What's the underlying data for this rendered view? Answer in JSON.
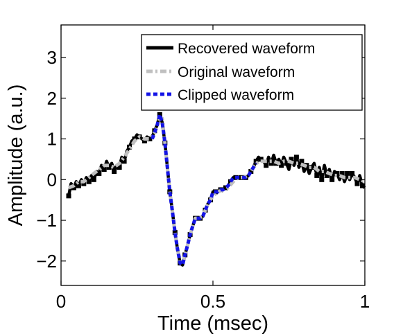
{
  "chart_data": {
    "type": "line",
    "title": "",
    "xlabel": "Time (msec)",
    "ylabel": "Amplitude (a.u.)",
    "xlim": [
      0,
      1
    ],
    "ylim": [
      -2.6,
      3.8
    ],
    "xticks": [
      0,
      0.5,
      1
    ],
    "xtick_labels": [
      "0",
      "0.5",
      "1"
    ],
    "yticks": [
      -2,
      -1,
      0,
      1,
      2,
      3
    ],
    "ytick_labels": [
      "−2",
      "−1",
      "0",
      "1",
      "2",
      "3"
    ],
    "grid": false,
    "legend_position": "top-right",
    "series": [
      {
        "name": "Recovered waveform",
        "color": "#000000",
        "x": [
          0.025,
          0.033,
          0.042,
          0.05,
          0.058,
          0.067,
          0.075,
          0.083,
          0.092,
          0.1,
          0.108,
          0.117,
          0.125,
          0.133,
          0.142,
          0.15,
          0.158,
          0.167,
          0.175,
          0.183,
          0.192,
          0.2,
          0.208,
          0.217,
          0.225,
          0.233,
          0.242,
          0.25,
          0.258,
          0.267,
          0.275,
          0.283,
          0.292,
          0.3,
          0.308,
          0.317,
          0.325,
          0.333,
          0.342,
          0.35,
          0.358,
          0.367,
          0.375,
          0.383,
          0.392,
          0.4,
          0.408,
          0.417,
          0.425,
          0.433,
          0.442,
          0.45,
          0.458,
          0.467,
          0.475,
          0.483,
          0.492,
          0.5,
          0.508,
          0.517,
          0.525,
          0.533,
          0.542,
          0.55,
          0.558,
          0.567,
          0.575,
          0.583,
          0.592,
          0.6,
          0.608,
          0.617,
          0.625,
          0.633,
          0.642,
          0.65,
          0.658,
          0.667,
          0.675,
          0.683,
          0.692,
          0.7,
          0.708,
          0.717,
          0.725,
          0.733,
          0.742,
          0.75,
          0.758,
          0.767,
          0.775,
          0.783,
          0.792,
          0.8,
          0.808,
          0.817,
          0.825,
          0.833,
          0.842,
          0.85,
          0.858,
          0.867,
          0.875,
          0.883,
          0.892,
          0.9,
          0.908,
          0.917,
          0.925,
          0.933,
          0.942,
          0.95,
          0.958,
          0.967,
          0.975,
          0.983,
          0.992,
          1.0
        ],
        "values": [
          -0.4,
          -0.1,
          -0.2,
          -0.05,
          -0.15,
          0.0,
          -0.1,
          0.05,
          -0.05,
          0.1,
          0.0,
          0.2,
          0.15,
          0.35,
          0.25,
          0.45,
          0.3,
          0.4,
          0.2,
          0.35,
          0.3,
          0.55,
          0.45,
          0.7,
          0.8,
          0.95,
          1.0,
          1.1,
          1.05,
          1.0,
          0.95,
          1.05,
          1.0,
          1.05,
          1.2,
          1.35,
          1.6,
          1.4,
          0.9,
          0.3,
          -0.3,
          -0.8,
          -1.3,
          -1.7,
          -2.05,
          -2.1,
          -1.85,
          -1.6,
          -1.35,
          -1.15,
          -0.95,
          -0.95,
          -0.95,
          -0.9,
          -0.75,
          -0.6,
          -0.5,
          -0.3,
          -0.3,
          -0.3,
          -0.25,
          -0.25,
          -0.2,
          -0.15,
          -0.05,
          0.05,
          0.05,
          0.05,
          0.05,
          0.05,
          0.05,
          0.1,
          0.2,
          0.3,
          0.45,
          0.55,
          0.5,
          0.45,
          0.35,
          0.55,
          0.4,
          0.6,
          0.4,
          0.5,
          0.35,
          0.55,
          0.4,
          0.25,
          0.5,
          0.35,
          0.55,
          0.3,
          0.45,
          0.2,
          0.35,
          0.15,
          0.3,
          0.4,
          0.1,
          0.3,
          0.0,
          0.35,
          0.1,
          0.25,
          0.0,
          0.2,
          0.15,
          0.0,
          0.15,
          -0.05,
          0.15,
          0.0,
          0.15,
          0.05,
          -0.1,
          0.1,
          -0.15,
          -0.2
        ]
      },
      {
        "name": "Original waveform",
        "color": "#c0c0c0",
        "x": [
          0.025,
          0.042,
          0.058,
          0.075,
          0.092,
          0.108,
          0.125,
          0.142,
          0.158,
          0.175,
          0.192,
          0.208,
          0.225,
          0.242,
          0.258,
          0.275,
          0.292,
          0.308,
          0.325,
          0.333,
          0.342,
          0.35,
          0.358,
          0.367,
          0.375,
          0.383,
          0.392,
          0.4,
          0.408,
          0.417,
          0.425,
          0.433,
          0.442,
          0.45,
          0.467,
          0.483,
          0.5,
          0.517,
          0.533,
          0.55,
          0.567,
          0.583,
          0.6,
          0.617,
          0.633,
          0.65,
          0.667,
          0.683,
          0.7,
          0.717,
          0.733,
          0.75,
          0.767,
          0.783,
          0.8,
          0.817,
          0.833,
          0.85,
          0.867,
          0.883,
          0.9,
          0.917,
          0.933,
          0.95,
          0.967,
          0.983,
          1.0
        ],
        "values": [
          -0.2,
          -0.15,
          -0.05,
          -0.05,
          0.05,
          0.15,
          0.25,
          0.35,
          0.35,
          0.3,
          0.4,
          0.55,
          0.75,
          0.95,
          1.05,
          1.0,
          1.0,
          1.15,
          1.5,
          1.5,
          0.9,
          0.3,
          -0.3,
          -0.8,
          -1.3,
          -1.7,
          -2.0,
          -2.05,
          -1.85,
          -1.6,
          -1.35,
          -1.15,
          -0.95,
          -0.95,
          -0.9,
          -0.6,
          -0.4,
          -0.3,
          -0.25,
          -0.2,
          -0.05,
          0.05,
          0.05,
          0.1,
          0.3,
          0.45,
          0.45,
          0.45,
          0.45,
          0.4,
          0.45,
          0.45,
          0.4,
          0.4,
          0.35,
          0.3,
          0.3,
          0.2,
          0.2,
          0.15,
          0.1,
          0.1,
          0.05,
          0.05,
          0.05,
          0.0,
          -0.05
        ]
      },
      {
        "name": "Clipped waveform",
        "color": "#1414e6",
        "x": [
          0.3,
          0.308,
          0.317,
          0.325,
          0.333,
          0.342,
          0.35,
          0.358,
          0.367,
          0.375,
          0.383,
          0.392,
          0.4,
          0.408,
          0.417,
          0.425,
          0.433,
          0.442,
          0.45,
          0.458,
          0.467,
          0.475,
          0.483,
          0.492,
          0.5,
          0.508,
          0.517,
          0.525,
          0.533,
          0.542,
          0.55,
          0.558,
          0.567,
          0.575,
          0.583,
          0.592,
          0.6,
          0.608,
          0.617,
          0.625,
          0.633,
          0.642
        ],
        "values": [
          1.0,
          1.15,
          1.35,
          1.6,
          1.4,
          0.9,
          0.3,
          -0.3,
          -0.8,
          -1.3,
          -1.7,
          -2.05,
          -2.1,
          -1.85,
          -1.6,
          -1.35,
          -1.15,
          -0.95,
          -0.95,
          -0.95,
          -0.9,
          -0.75,
          -0.6,
          -0.5,
          -0.3,
          -0.3,
          -0.3,
          -0.25,
          -0.25,
          -0.2,
          -0.15,
          -0.05,
          0.05,
          0.05,
          0.05,
          0.05,
          0.05,
          0.05,
          0.1,
          0.2,
          0.3,
          0.4
        ]
      }
    ]
  }
}
